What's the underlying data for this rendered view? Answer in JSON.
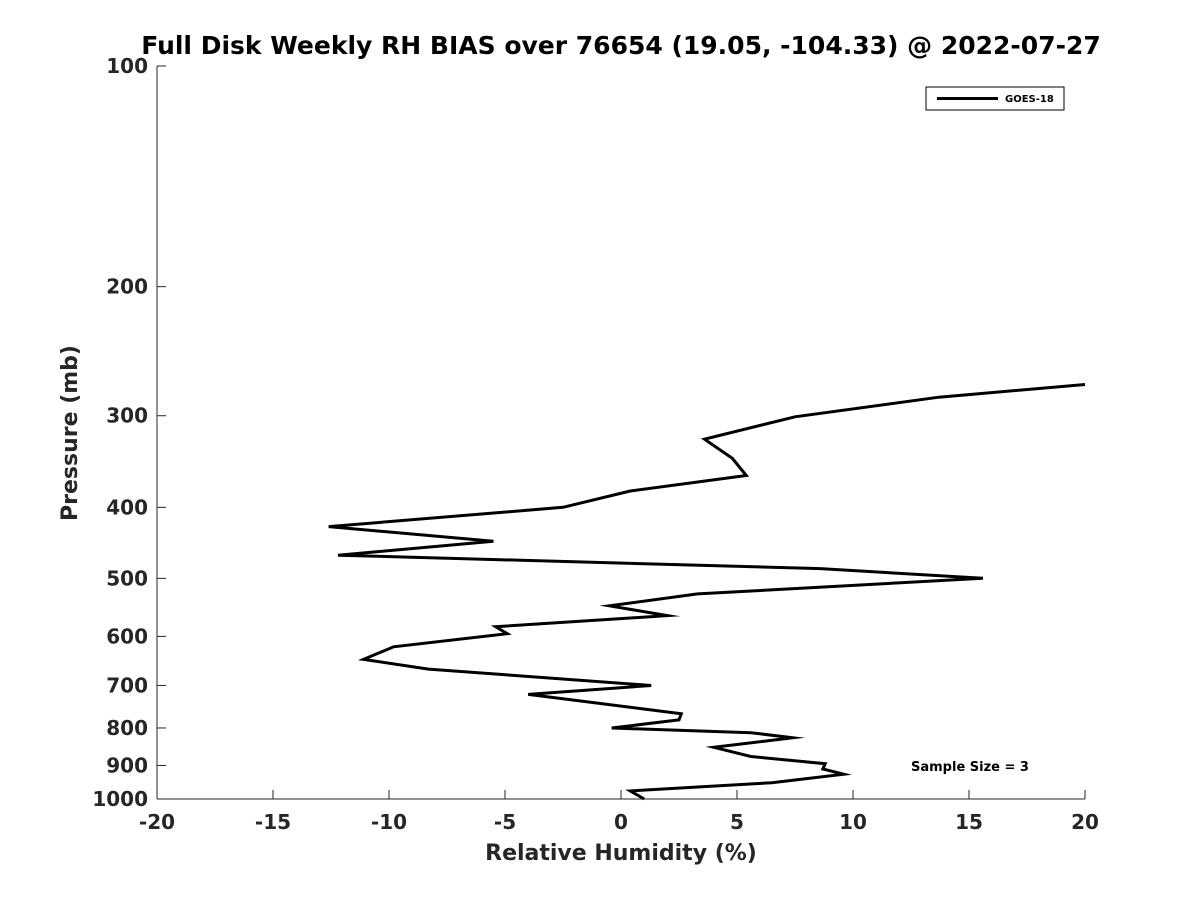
{
  "chart_data": {
    "type": "line",
    "title": "Full Disk Weekly RH BIAS over 76654 (19.05, -104.33) @ 2022-07-27",
    "xlabel": "Relative Humidity (%)",
    "ylabel": "Pressure (mb)",
    "xlim": [
      -20,
      20
    ],
    "ylim": [
      100,
      1000
    ],
    "y_scale": "log",
    "y_direction": "reversed",
    "grid": false,
    "legend_position": "top-right",
    "x_ticks": [
      -20,
      -15,
      -10,
      -5,
      0,
      5,
      10,
      15,
      20
    ],
    "x_tick_labels": [
      "-20",
      "-15",
      "-10",
      "-5",
      "0",
      "5",
      "10",
      "15",
      "20"
    ],
    "y_ticks": [
      100,
      200,
      300,
      400,
      500,
      600,
      700,
      800,
      900,
      1000
    ],
    "y_tick_labels": [
      "100",
      "200",
      "300",
      "400",
      "500",
      "600",
      "700",
      "800",
      "900",
      "1000"
    ],
    "series": [
      {
        "name": "GOES-18",
        "color": "#000000",
        "points": [
          {
            "x": 1.0,
            "p": 1000
          },
          {
            "x": 0.4,
            "p": 975
          },
          {
            "x": 6.5,
            "p": 950
          },
          {
            "x": 9.6,
            "p": 925
          },
          {
            "x": 8.7,
            "p": 910
          },
          {
            "x": 8.8,
            "p": 895
          },
          {
            "x": 5.6,
            "p": 875
          },
          {
            "x": 4.0,
            "p": 850
          },
          {
            "x": 7.4,
            "p": 825
          },
          {
            "x": 5.6,
            "p": 812
          },
          {
            "x": -0.4,
            "p": 800
          },
          {
            "x": 2.5,
            "p": 780
          },
          {
            "x": 2.6,
            "p": 765
          },
          {
            "x": -4.0,
            "p": 720
          },
          {
            "x": 1.3,
            "p": 700
          },
          {
            "x": -8.3,
            "p": 665
          },
          {
            "x": -11.1,
            "p": 645
          },
          {
            "x": -9.8,
            "p": 620
          },
          {
            "x": -4.9,
            "p": 595
          },
          {
            "x": -5.4,
            "p": 582
          },
          {
            "x": 2.0,
            "p": 562
          },
          {
            "x": -0.5,
            "p": 545
          },
          {
            "x": 3.3,
            "p": 525
          },
          {
            "x": 15.6,
            "p": 500
          },
          {
            "x": 8.6,
            "p": 485
          },
          {
            "x": -12.2,
            "p": 465
          },
          {
            "x": -5.5,
            "p": 445
          },
          {
            "x": -12.6,
            "p": 425
          },
          {
            "x": -2.5,
            "p": 400
          },
          {
            "x": 0.4,
            "p": 380
          },
          {
            "x": 5.4,
            "p": 362
          },
          {
            "x": 4.8,
            "p": 343
          },
          {
            "x": 3.6,
            "p": 323
          },
          {
            "x": 7.5,
            "p": 301
          },
          {
            "x": 13.7,
            "p": 283
          },
          {
            "x": 20.0,
            "p": 272
          }
        ]
      }
    ],
    "annotations": [
      "Sample Size = 3"
    ]
  }
}
